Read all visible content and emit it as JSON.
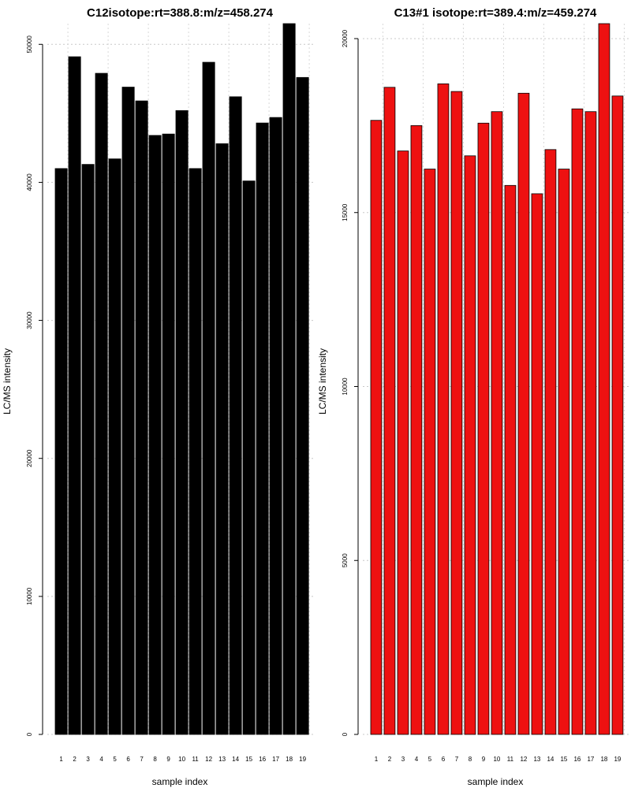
{
  "chart_data": [
    {
      "type": "bar",
      "title": "C12isotope:rt=388.8:m/z=458.274",
      "xlabel": "sample index",
      "ylabel": "LC/MS intensity",
      "categories": [
        "1",
        "2",
        "3",
        "4",
        "5",
        "6",
        "7",
        "8",
        "9",
        "10",
        "11",
        "12",
        "13",
        "14",
        "15",
        "16",
        "17",
        "18",
        "19"
      ],
      "values": [
        41000,
        49100,
        41300,
        47900,
        41700,
        46900,
        45900,
        43400,
        43500,
        45200,
        41000,
        48700,
        42800,
        46200,
        40100,
        44300,
        44700,
        51500,
        47600
      ],
      "ylim": [
        0,
        51500
      ],
      "yticks": [
        0,
        10000,
        20000,
        30000,
        40000,
        50000
      ],
      "ytick_labels": [
        "0",
        "10000",
        "20000",
        "30000",
        "40000",
        "50000"
      ],
      "bar_color": "#000000",
      "grid": true
    },
    {
      "type": "bar",
      "title": "C13#1 isotope:rt=389.4:m/z=459.274",
      "xlabel": "sample index",
      "ylabel": "LC/MS intensity",
      "categories": [
        "1",
        "2",
        "3",
        "4",
        "5",
        "6",
        "7",
        "8",
        "9",
        "10",
        "11",
        "12",
        "13",
        "14",
        "15",
        "16",
        "17",
        "18",
        "19"
      ],
      "values": [
        17650,
        18600,
        16770,
        17500,
        16250,
        18700,
        18480,
        16630,
        17570,
        17900,
        15780,
        18430,
        15540,
        16810,
        16250,
        17980,
        17900,
        20430,
        18350
      ],
      "ylim": [
        0,
        20430
      ],
      "yticks": [
        0,
        5000,
        10000,
        15000,
        20000
      ],
      "ytick_labels": [
        "0",
        "5000",
        "10000",
        "15000",
        "20000"
      ],
      "bar_color": "#ee1111",
      "grid": true
    }
  ]
}
